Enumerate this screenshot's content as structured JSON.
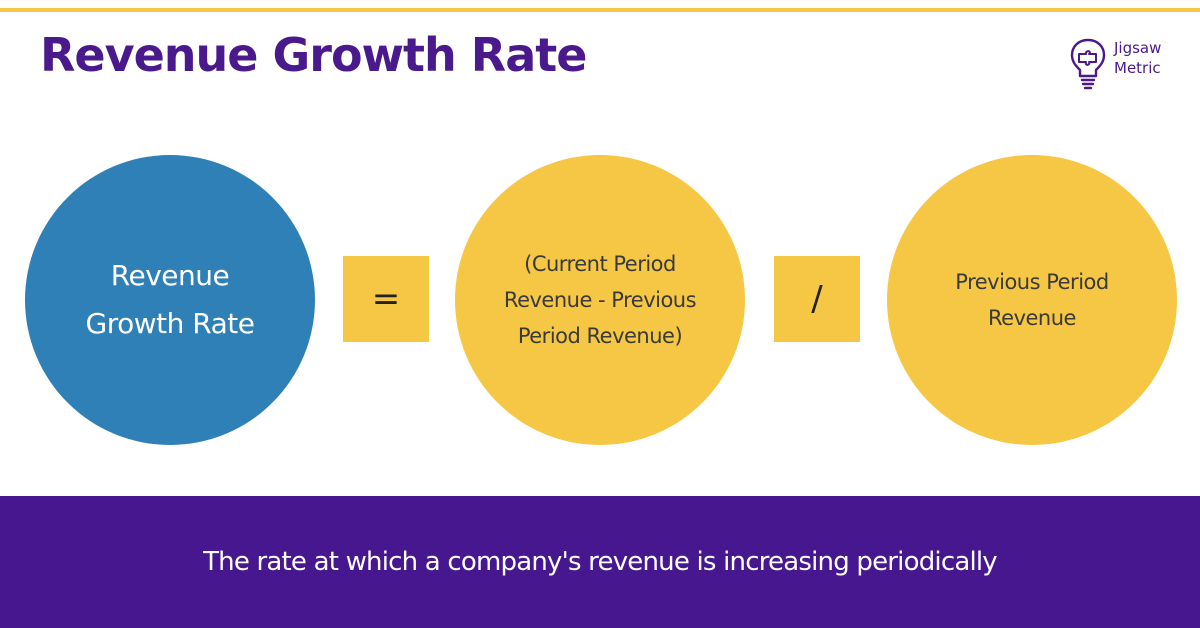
{
  "title": "Revenue Growth Rate",
  "logo": {
    "line1": "Jigsaw",
    "line2": "Metric",
    "icon": "lightbulb-puzzle-icon"
  },
  "formula": {
    "lhs": {
      "line1": "Revenue",
      "line2": "Growth Rate"
    },
    "equals": "=",
    "numerator": {
      "line1": "(Current Period",
      "line2": "Revenue - Previous",
      "line3": "Period Revenue)"
    },
    "divide": "/",
    "denominator": {
      "line1": "Previous Period",
      "line2": "Revenue"
    }
  },
  "caption": "The rate at which a company's revenue is increasing periodically",
  "colors": {
    "accent": "#f6c744",
    "brand": "#47178f",
    "title": "#4a1a8c",
    "circle_lhs": "#2f80b7"
  }
}
